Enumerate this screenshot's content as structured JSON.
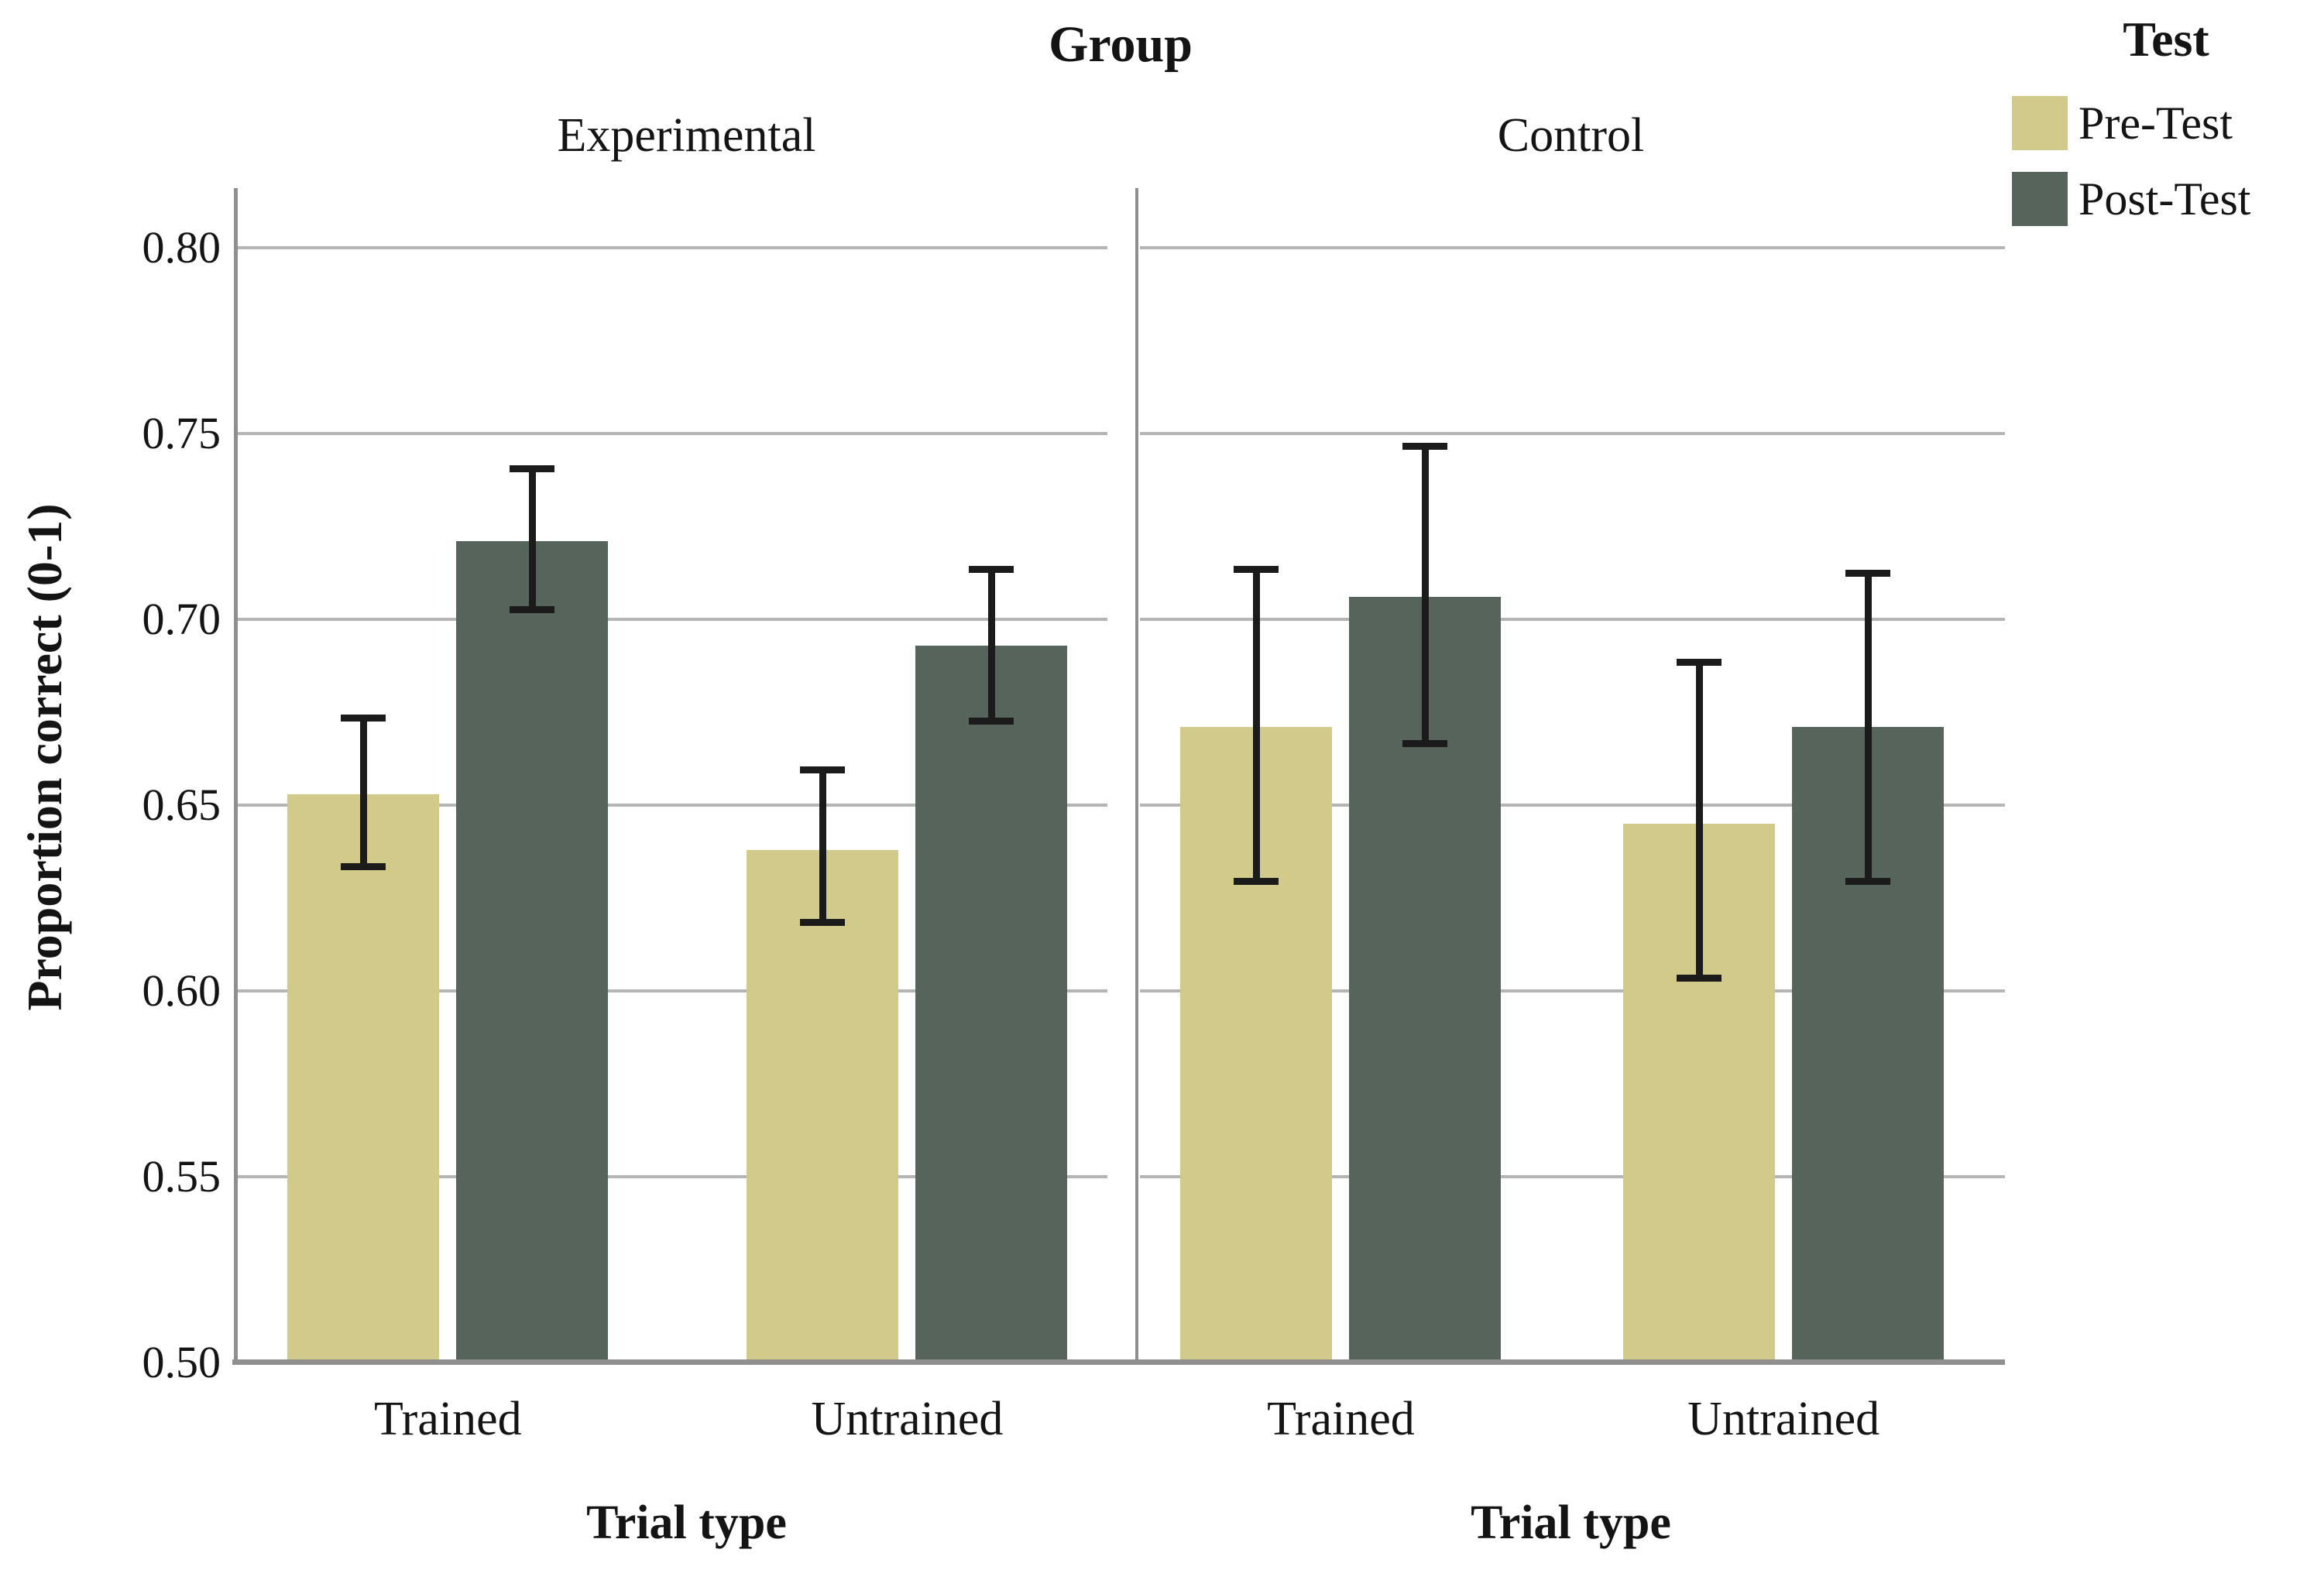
{
  "figure": {
    "title": "Group",
    "y_axis_title": "Proportion correct (0-1)"
  },
  "legend": {
    "title": "Test",
    "items": [
      {
        "label": "Pre-Test",
        "color": "#d2ca8a"
      },
      {
        "label": "Post-Test",
        "color": "#57645c"
      }
    ]
  },
  "chart_data": {
    "type": "bar",
    "title": "Group",
    "ylabel": "Proportion correct (0-1)",
    "xlabel": "Trial type",
    "ylim": [
      0.5,
      0.8
    ],
    "yticks": [
      0.5,
      0.55,
      0.6,
      0.65,
      0.7,
      0.75,
      0.8
    ],
    "ytick_labels": [
      "0.50",
      "0.55",
      "0.60",
      "0.65",
      "0.70",
      "0.75",
      "0.80"
    ],
    "grid": true,
    "legend_position": "top-right",
    "categories": [
      "Trained",
      "Untrained"
    ],
    "series_names": [
      "Pre-Test",
      "Post-Test"
    ],
    "error_bars": true,
    "panels": [
      {
        "label": "Experimental",
        "x_axis_title": "Trial type",
        "groups": [
          {
            "category": "Trained",
            "bars": [
              {
                "series": "Pre-Test",
                "value": 0.653,
                "ci_low": 0.633,
                "ci_high": 0.674
              },
              {
                "series": "Post-Test",
                "value": 0.721,
                "ci_low": 0.702,
                "ci_high": 0.741
              }
            ]
          },
          {
            "category": "Untrained",
            "bars": [
              {
                "series": "Pre-Test",
                "value": 0.638,
                "ci_low": 0.618,
                "ci_high": 0.66
              },
              {
                "series": "Post-Test",
                "value": 0.693,
                "ci_low": 0.672,
                "ci_high": 0.714
              }
            ]
          }
        ]
      },
      {
        "label": "Control",
        "x_axis_title": "Trial type",
        "groups": [
          {
            "category": "Trained",
            "bars": [
              {
                "series": "Pre-Test",
                "value": 0.671,
                "ci_low": 0.629,
                "ci_high": 0.714
              },
              {
                "series": "Post-Test",
                "value": 0.706,
                "ci_low": 0.666,
                "ci_high": 0.747
              }
            ]
          },
          {
            "category": "Untrained",
            "bars": [
              {
                "series": "Pre-Test",
                "value": 0.645,
                "ci_low": 0.603,
                "ci_high": 0.689
              },
              {
                "series": "Post-Test",
                "value": 0.671,
                "ci_low": 0.629,
                "ci_high": 0.713
              }
            ]
          }
        ]
      }
    ],
    "colors": {
      "pre_test": "#d2ca8a",
      "post_test": "#57645c",
      "gridline": "#b5b5b5",
      "axis": "#8f8f8f",
      "error_bar": "#1b1b1b",
      "text": "#141414"
    }
  }
}
